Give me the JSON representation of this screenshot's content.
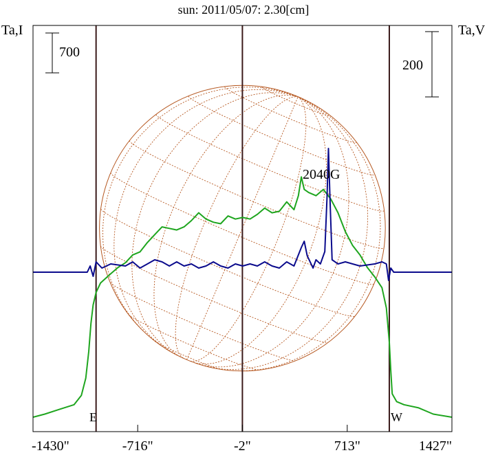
{
  "chart_data": {
    "type": "line",
    "title": "sun: 2011/05/07: 2.30[cm]",
    "ylabel_left": "Ta,I",
    "ylabel_right": "Ta,V",
    "xlim": [
      -1430,
      1427
    ],
    "x_ticks": [
      {
        "value": -1430,
        "label": "-1430\""
      },
      {
        "value": -716,
        "label": "-716\""
      },
      {
        "value": -2,
        "label": "-2\""
      },
      {
        "value": 713,
        "label": "713\""
      },
      {
        "value": 1427,
        "label": "1427\""
      }
    ],
    "scale_bars": [
      {
        "axis": "left",
        "label": "700"
      },
      {
        "axis": "right",
        "label": "200"
      }
    ],
    "limb_markers": [
      {
        "label": "E",
        "x": -1000
      },
      {
        "label": "W",
        "x": 1000
      }
    ],
    "center_line_x": -2,
    "disk_radius": 975,
    "annotations": [
      {
        "text": "2040G",
        "x": 590
      }
    ],
    "colors": {
      "frame": "#000000",
      "title": "#1a1a80",
      "limb_lines": "#3a1a1a",
      "stokes_I": "#1ea51e",
      "stokes_V": "#0a0a8c",
      "disk_grid": "#b5561e"
    },
    "series": [
      {
        "name": "Ta,I",
        "axis": "left",
        "points": [
          [
            -1430,
            0.0
          ],
          [
            -1350,
            0.02
          ],
          [
            -1250,
            0.05
          ],
          [
            -1150,
            0.08
          ],
          [
            -1100,
            0.14
          ],
          [
            -1070,
            0.25
          ],
          [
            -1050,
            0.42
          ],
          [
            -1035,
            0.6
          ],
          [
            -1020,
            0.72
          ],
          [
            -1000,
            0.8
          ],
          [
            -970,
            0.86
          ],
          [
            -900,
            0.92
          ],
          [
            -850,
            0.96
          ],
          [
            -800,
            0.99
          ],
          [
            -750,
            1.04
          ],
          [
            -700,
            1.06
          ],
          [
            -650,
            1.12
          ],
          [
            -600,
            1.17
          ],
          [
            -550,
            1.22
          ],
          [
            -500,
            1.21
          ],
          [
            -450,
            1.2
          ],
          [
            -400,
            1.22
          ],
          [
            -350,
            1.26
          ],
          [
            -300,
            1.31
          ],
          [
            -250,
            1.27
          ],
          [
            -200,
            1.25
          ],
          [
            -150,
            1.24
          ],
          [
            -100,
            1.29
          ],
          [
            -50,
            1.27
          ],
          [
            0,
            1.28
          ],
          [
            50,
            1.27
          ],
          [
            100,
            1.3
          ],
          [
            150,
            1.34
          ],
          [
            200,
            1.31
          ],
          [
            250,
            1.32
          ],
          [
            300,
            1.38
          ],
          [
            350,
            1.33
          ],
          [
            380,
            1.42
          ],
          [
            400,
            1.54
          ],
          [
            420,
            1.46
          ],
          [
            450,
            1.44
          ],
          [
            500,
            1.42
          ],
          [
            550,
            1.46
          ],
          [
            600,
            1.4
          ],
          [
            650,
            1.31
          ],
          [
            700,
            1.19
          ],
          [
            750,
            1.1
          ],
          [
            800,
            1.04
          ],
          [
            850,
            0.96
          ],
          [
            900,
            0.9
          ],
          [
            950,
            0.83
          ],
          [
            980,
            0.7
          ],
          [
            1000,
            0.48
          ],
          [
            1010,
            0.3
          ],
          [
            1020,
            0.15
          ],
          [
            1050,
            0.1
          ],
          [
            1100,
            0.08
          ],
          [
            1200,
            0.06
          ],
          [
            1300,
            0.02
          ],
          [
            1427,
            0.0
          ]
        ]
      },
      {
        "name": "Ta,V",
        "axis": "right",
        "points": [
          [
            -1430,
            0.0
          ],
          [
            -1200,
            0.0
          ],
          [
            -1060,
            0.0
          ],
          [
            -1040,
            0.03
          ],
          [
            -1020,
            -0.02
          ],
          [
            -1000,
            0.05
          ],
          [
            -960,
            0.02
          ],
          [
            -900,
            0.04
          ],
          [
            -800,
            0.03
          ],
          [
            -750,
            0.05
          ],
          [
            -700,
            0.02
          ],
          [
            -650,
            0.04
          ],
          [
            -600,
            0.06
          ],
          [
            -550,
            0.05
          ],
          [
            -500,
            0.03
          ],
          [
            -450,
            0.05
          ],
          [
            -400,
            0.03
          ],
          [
            -350,
            0.04
          ],
          [
            -300,
            0.02
          ],
          [
            -250,
            0.03
          ],
          [
            -200,
            0.05
          ],
          [
            -150,
            0.03
          ],
          [
            -100,
            0.02
          ],
          [
            -50,
            0.04
          ],
          [
            0,
            0.03
          ],
          [
            50,
            0.04
          ],
          [
            100,
            0.03
          ],
          [
            150,
            0.05
          ],
          [
            200,
            0.03
          ],
          [
            250,
            0.02
          ],
          [
            300,
            0.05
          ],
          [
            350,
            0.03
          ],
          [
            400,
            0.12
          ],
          [
            420,
            0.15
          ],
          [
            440,
            0.08
          ],
          [
            480,
            0.02
          ],
          [
            500,
            0.06
          ],
          [
            530,
            0.04
          ],
          [
            560,
            0.1
          ],
          [
            575,
            0.36
          ],
          [
            585,
            0.6
          ],
          [
            595,
            0.36
          ],
          [
            610,
            0.06
          ],
          [
            650,
            0.04
          ],
          [
            700,
            0.05
          ],
          [
            800,
            0.03
          ],
          [
            900,
            0.04
          ],
          [
            950,
            0.05
          ],
          [
            980,
            0.04
          ],
          [
            995,
            -0.04
          ],
          [
            1010,
            0.02
          ],
          [
            1030,
            0.0
          ],
          [
            1200,
            0.0
          ],
          [
            1427,
            0.0
          ]
        ]
      }
    ]
  }
}
